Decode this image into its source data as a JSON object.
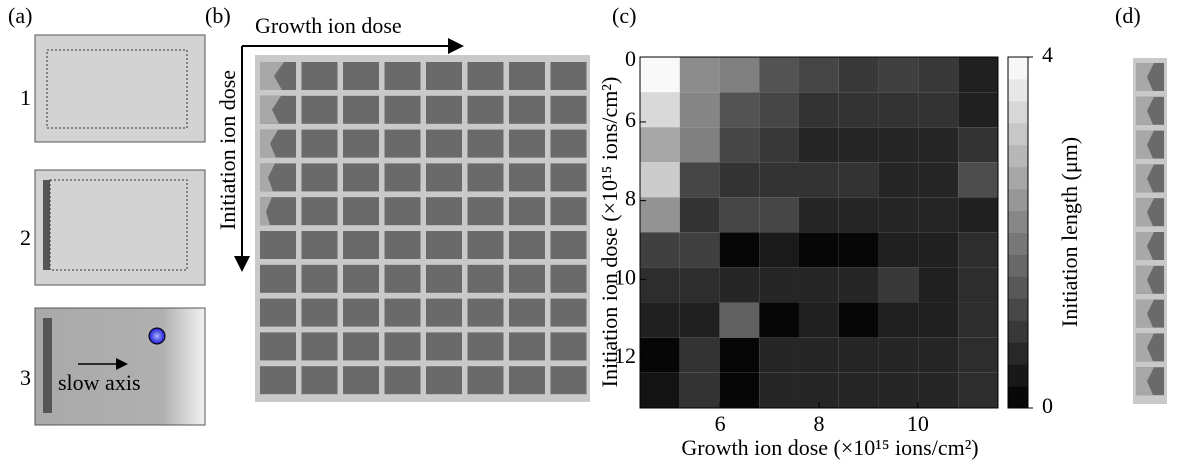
{
  "panels": {
    "a": {
      "label": "(a)",
      "steps": [
        "1",
        "2",
        "3"
      ],
      "annotation": "slow axis"
    },
    "b": {
      "label": "(b)",
      "x_label": "Growth ion dose",
      "y_label": "Initiation ion dose"
    },
    "c": {
      "label": "(c)"
    },
    "d": {
      "label": "(d)"
    }
  },
  "chart_data": {
    "type": "heatmap",
    "x_label": "Growth ion dose (×10¹⁵ ions/cm²)",
    "y_label": "Initiation ion dose (×10¹⁵ ions/cm²)",
    "colorbar_label": "Initiation length (μm)",
    "annotations": [
      "0"
    ],
    "x": [
      4.78,
      5.59,
      6.39,
      7.19,
      8.0,
      8.8,
      9.61,
      10.41,
      11.22
    ],
    "y": [
      4.8,
      5.69,
      6.58,
      7.47,
      8.36,
      9.25,
      10.14,
      11.04,
      11.93,
      12.82
    ],
    "values": [
      [
        3.9,
        2.2,
        2.0,
        1.3,
        1.1,
        0.9,
        1.0,
        0.9,
        0.5
      ],
      [
        3.4,
        2.1,
        1.3,
        1.1,
        0.8,
        0.8,
        0.8,
        0.8,
        0.5
      ],
      [
        2.6,
        2.0,
        1.1,
        0.9,
        0.6,
        0.6,
        0.6,
        0.6,
        0.8
      ],
      [
        3.2,
        1.1,
        0.8,
        0.8,
        0.8,
        0.8,
        0.6,
        0.6,
        1.2
      ],
      [
        2.3,
        0.8,
        1.1,
        1.1,
        0.6,
        0.6,
        0.6,
        0.6,
        0.5
      ],
      [
        1.0,
        1.0,
        0.1,
        0.4,
        0.1,
        0.1,
        0.5,
        0.5,
        0.7
      ],
      [
        0.7,
        0.7,
        0.6,
        0.6,
        0.6,
        0.6,
        0.9,
        0.5,
        0.7
      ],
      [
        0.5,
        0.5,
        1.5,
        0.1,
        0.5,
        0.1,
        0.5,
        0.5,
        0.7
      ],
      [
        0.1,
        0.8,
        0.1,
        0.6,
        0.6,
        0.6,
        0.6,
        0.6,
        0.7
      ],
      [
        0.3,
        0.8,
        0.1,
        0.6,
        0.6,
        0.6,
        0.6,
        0.6,
        0.7
      ]
    ],
    "xlim": [
      4.38,
      11.62
    ],
    "ylim": [
      4.35,
      13.27
    ],
    "xticks": [
      6,
      8,
      10
    ],
    "yticks": [
      6,
      8,
      10,
      12
    ],
    "colormap": "gray",
    "zlim": [
      0,
      4
    ],
    "zticks": [
      0,
      4
    ],
    "colorbar_levels": 16
  }
}
